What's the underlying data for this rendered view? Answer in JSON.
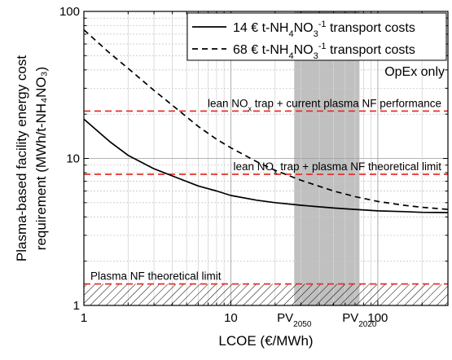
{
  "chart_data": {
    "type": "line",
    "xlabel": "LCOE (€/MWh)",
    "ylabel_line1": "Plasma-based facility energy cost",
    "ylabel_line2": "requirement (MWh/t-NH₄NO₃)",
    "xscale": "log",
    "yscale": "log",
    "xlim": [
      1,
      300
    ],
    "ylim": [
      1,
      100
    ],
    "grid": true,
    "legend_position": "top-right",
    "x_ticks": [
      {
        "value": 1,
        "label": "1"
      },
      {
        "value": 10,
        "label": "10"
      },
      {
        "value": 100,
        "label": "100"
      }
    ],
    "y_ticks": [
      {
        "value": 1,
        "label": "1"
      },
      {
        "value": 10,
        "label": "10"
      },
      {
        "value": 100,
        "label": "100"
      }
    ],
    "series": [
      {
        "name_main": "14 € t-NH",
        "name_sub1": "4",
        "name_mid": "NO",
        "name_sub2": "3",
        "name_sup": "-1",
        "name_tail": " transport costs",
        "style": "solid",
        "color": "#000000",
        "x": [
          1,
          1.5,
          2,
          3,
          4,
          6,
          8,
          10,
          15,
          20,
          30,
          50,
          70,
          100,
          150,
          200,
          300
        ],
        "y": [
          18.5,
          13.0,
          10.5,
          8.5,
          7.6,
          6.5,
          6.0,
          5.6,
          5.2,
          5.0,
          4.8,
          4.6,
          4.5,
          4.4,
          4.35,
          4.3,
          4.28
        ]
      },
      {
        "name_main": "68 € t-NH",
        "name_sub1": "4",
        "name_mid": "NO",
        "name_sub2": "3",
        "name_sup": "-1",
        "name_tail": " transport costs",
        "style": "dashed",
        "color": "#000000",
        "x": [
          1,
          1.5,
          2,
          3,
          4,
          6,
          8,
          10,
          15,
          20,
          30,
          50,
          70,
          100,
          150,
          200,
          300
        ],
        "y": [
          75,
          52,
          41,
          29,
          23,
          16.5,
          13.5,
          11.8,
          9.5,
          8.3,
          7.1,
          6.0,
          5.5,
          5.1,
          4.8,
          4.65,
          4.5
        ]
      }
    ],
    "legend_note": "OpEx only",
    "reference_lines": [
      {
        "y": 21,
        "color": "#e8302a",
        "label_pre": "lean NO",
        "label_sub": "x",
        "label_post": " trap + current plasma NF performance"
      },
      {
        "y": 7.8,
        "color": "#e8302a",
        "label_pre": "lean NO",
        "label_sub": "x",
        "label_post": " trap  + plasma NF theoretical limit"
      },
      {
        "y": 1.4,
        "color": "#e8302a",
        "label_pre": "Plasma NF theoretical limit",
        "label_sub": "",
        "label_post": ""
      }
    ],
    "hatched_region": {
      "y_from": 1,
      "y_to": 1.4
    },
    "shaded_region": {
      "x_from": 27,
      "x_to": 75,
      "color": "#c0c0c0"
    },
    "shaded_labels": [
      {
        "x": 27,
        "text": "PV",
        "sub": "2050"
      },
      {
        "x": 75,
        "text": "PV",
        "sub": "2020"
      }
    ]
  }
}
